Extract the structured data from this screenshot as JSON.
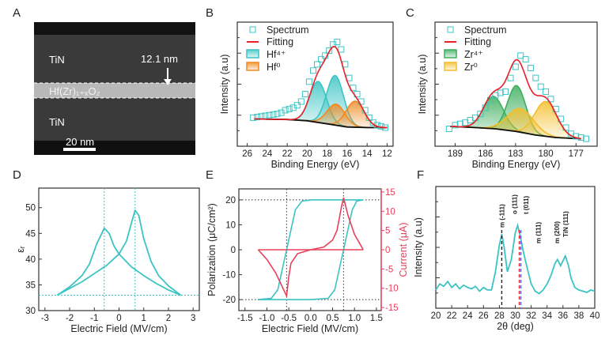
{
  "colors": {
    "teal": "#3cc4c4",
    "red": "#e8202a",
    "orange": "#f08a20",
    "green": "#3cae5c",
    "yellow": "#f4be2a",
    "current": "#e8405a",
    "blue": "#4a5cf0",
    "black": "#222222"
  },
  "panel_labels": [
    "A",
    "B",
    "C",
    "D",
    "E",
    "F"
  ],
  "tem": {
    "top_layer": "TiN",
    "bottom_layer": "TiN",
    "middle_layer": "Hf(Zr)₁₊ₓO₂",
    "thickness": "12.1 nm",
    "scale_bar": "20 nm"
  },
  "chart_data": [
    {
      "panel": "B",
      "type": "line",
      "xlabel": "Binding Energy (eV)",
      "ylabel": "Intensity (a.u)",
      "xlim": [
        27,
        11.4
      ],
      "ylim": [
        0,
        1
      ],
      "x_reversed": true,
      "xticks": [
        26,
        24,
        22,
        20,
        18,
        16,
        14,
        12
      ],
      "grid": false,
      "legend": "top-left",
      "legend_entries": [
        "Spectrum",
        "Fitting",
        "Hf⁴⁺",
        "Hf⁰"
      ],
      "background": [
        [
          25.3,
          0.22
        ],
        [
          22,
          0.215
        ],
        [
          20,
          0.205
        ],
        [
          18,
          0.18
        ],
        [
          16,
          0.155
        ],
        [
          14,
          0.15
        ],
        [
          12,
          0.15
        ]
      ],
      "components": [
        {
          "name": "Hf⁴⁺",
          "center": 18.9,
          "amplitude": 0.33,
          "sigma": 0.85
        },
        {
          "name": "Hf⁴⁺",
          "center": 17.2,
          "amplitude": 0.4,
          "sigma": 0.85
        },
        {
          "name": "Hf⁰",
          "center": 17.1,
          "amplitude": 0.17,
          "sigma": 0.9
        },
        {
          "name": "Hf⁰",
          "center": 15.2,
          "amplitude": 0.21,
          "sigma": 0.9
        }
      ],
      "spectrum": [
        [
          25.4,
          0.23
        ],
        [
          25,
          0.235
        ],
        [
          24.6,
          0.24
        ],
        [
          24.2,
          0.245
        ],
        [
          23.8,
          0.25
        ],
        [
          23.4,
          0.255
        ],
        [
          23,
          0.26
        ],
        [
          22.6,
          0.27
        ],
        [
          22.2,
          0.29
        ],
        [
          21.8,
          0.3
        ],
        [
          21.4,
          0.31
        ],
        [
          21,
          0.33
        ],
        [
          20.6,
          0.36
        ],
        [
          20.2,
          0.42
        ],
        [
          19.8,
          0.52
        ],
        [
          19.4,
          0.61
        ],
        [
          19,
          0.66
        ],
        [
          18.6,
          0.7
        ],
        [
          18.2,
          0.73
        ],
        [
          17.8,
          0.77
        ],
        [
          17.4,
          0.82
        ],
        [
          17,
          0.84
        ],
        [
          16.6,
          0.78
        ],
        [
          16.2,
          0.66
        ],
        [
          15.8,
          0.55
        ],
        [
          15.4,
          0.47
        ],
        [
          15,
          0.42
        ],
        [
          14.6,
          0.36
        ],
        [
          14.2,
          0.29
        ],
        [
          13.8,
          0.23
        ],
        [
          13.4,
          0.19
        ],
        [
          13,
          0.17
        ],
        [
          12.6,
          0.16
        ],
        [
          12.2,
          0.15
        ]
      ]
    },
    {
      "panel": "C",
      "type": "line",
      "xlabel": "Binding Energy (eV)",
      "ylabel": "Intensity (a.u)",
      "xlim": [
        191,
        174.9
      ],
      "ylim": [
        0,
        1
      ],
      "x_reversed": true,
      "xticks": [
        189,
        186,
        183,
        180,
        177
      ],
      "grid": false,
      "legend": "top-left",
      "legend_entries": [
        "Spectrum",
        "Fitting",
        "Zr⁴⁺",
        "Zr⁰"
      ],
      "background": [
        [
          189.5,
          0.16
        ],
        [
          187,
          0.15
        ],
        [
          185,
          0.14
        ],
        [
          183,
          0.12
        ],
        [
          181,
          0.09
        ],
        [
          179,
          0.07
        ],
        [
          176.5,
          0.06
        ]
      ],
      "components": [
        {
          "name": "Zr⁴⁺",
          "center": 185.2,
          "amplitude": 0.26,
          "sigma": 1.0
        },
        {
          "name": "Zr⁴⁺",
          "center": 182.9,
          "amplitude": 0.37,
          "sigma": 0.9
        },
        {
          "name": "Zr⁰",
          "center": 182.5,
          "amplitude": 0.19,
          "sigma": 1.3
        },
        {
          "name": "Zr⁰",
          "center": 180.0,
          "amplitude": 0.28,
          "sigma": 1.1
        }
      ],
      "spectrum": [
        [
          189.6,
          0.14
        ],
        [
          189,
          0.17
        ],
        [
          188.5,
          0.18
        ],
        [
          188,
          0.19
        ],
        [
          187.5,
          0.21
        ],
        [
          187,
          0.23
        ],
        [
          186.5,
          0.26
        ],
        [
          186,
          0.31
        ],
        [
          185.5,
          0.37
        ],
        [
          185,
          0.41
        ],
        [
          184.5,
          0.43
        ],
        [
          184,
          0.44
        ],
        [
          183.5,
          0.55
        ],
        [
          183,
          0.64
        ],
        [
          182.5,
          0.73
        ],
        [
          182,
          0.7
        ],
        [
          181.5,
          0.63
        ],
        [
          181,
          0.55
        ],
        [
          180.5,
          0.48
        ],
        [
          180,
          0.44
        ],
        [
          179.5,
          0.38
        ],
        [
          179,
          0.3
        ],
        [
          178.5,
          0.22
        ],
        [
          178,
          0.15
        ],
        [
          177.5,
          0.1
        ],
        [
          177,
          0.08
        ],
        [
          176.5,
          0.07
        ],
        [
          176,
          0.06
        ]
      ]
    },
    {
      "panel": "D",
      "type": "line",
      "xlabel": "Electric Field (MV/cm)",
      "ylabel": "εᵣ",
      "xlim": [
        -3.25,
        3.25
      ],
      "ylim": [
        30,
        53.8
      ],
      "xticks": [
        -3,
        -2,
        -1,
        0,
        1,
        2,
        3
      ],
      "yticks": [
        30,
        35,
        40,
        45,
        50
      ],
      "grid": false,
      "reference_lines": {
        "x": [
          -0.6,
          0.65
        ],
        "y": [
          33
        ]
      },
      "series": [
        {
          "values": [
            [
              -2.5,
              33
            ],
            [
              -2,
              34.3
            ],
            [
              -1.5,
              35.6
            ],
            [
              -1,
              37.2
            ],
            [
              -0.5,
              38.8
            ],
            [
              0,
              41
            ],
            [
              0.3,
              43.5
            ],
            [
              0.5,
              47
            ],
            [
              0.65,
              49.5
            ],
            [
              0.8,
              48.5
            ],
            [
              1,
              44
            ],
            [
              1.3,
              39.5
            ],
            [
              1.6,
              36.8
            ],
            [
              2,
              34.8
            ],
            [
              2.5,
              33
            ]
          ]
        },
        {
          "values": [
            [
              2.5,
              33
            ],
            [
              2,
              34
            ],
            [
              1.5,
              35.3
            ],
            [
              1,
              36.8
            ],
            [
              0.5,
              38.5
            ],
            [
              0,
              41
            ],
            [
              -0.2,
              42.5
            ],
            [
              -0.4,
              45
            ],
            [
              -0.6,
              46
            ],
            [
              -0.9,
              43
            ],
            [
              -1.2,
              39
            ],
            [
              -1.5,
              36.8
            ],
            [
              -2,
              34.6
            ],
            [
              -2.5,
              33
            ]
          ]
        }
      ]
    },
    {
      "panel": "E",
      "type": "line",
      "xlabel": "Electric Field (MV/cm)",
      "ylabel": "Polarization (μC/cm²)",
      "y2label": "Current (μA)",
      "xlim": [
        -1.64,
        1.61
      ],
      "ylim": [
        -24.4,
        24.4
      ],
      "y2lim": [
        -15.8,
        15.8
      ],
      "xticks": [
        "-1.5",
        "-1.0",
        "-0.5",
        "0.0",
        "0.5",
        "1.0",
        "1.5"
      ],
      "yticks": [
        20,
        10,
        0,
        -10,
        -20
      ],
      "y2ticks": [
        15,
        10,
        5,
        0,
        -5,
        -10,
        -15
      ],
      "grid": false,
      "reference_lines": {
        "x": [
          -0.55,
          0.75
        ],
        "y": [
          20,
          -20
        ]
      },
      "polarization": [
        {
          "values": [
            [
              -1.2,
              -20
            ],
            [
              0,
              -20
            ],
            [
              0.4,
              -19.5
            ],
            [
              0.55,
              -16
            ],
            [
              0.65,
              -8
            ],
            [
              0.75,
              0
            ],
            [
              0.85,
              8
            ],
            [
              0.95,
              16
            ],
            [
              1.05,
              19.5
            ],
            [
              1.2,
              20
            ]
          ]
        },
        {
          "values": [
            [
              1.2,
              20
            ],
            [
              0,
              20
            ],
            [
              -0.2,
              19.5
            ],
            [
              -0.35,
              16
            ],
            [
              -0.45,
              8
            ],
            [
              -0.55,
              0
            ],
            [
              -0.65,
              -8
            ],
            [
              -0.75,
              -16
            ],
            [
              -0.9,
              -19.5
            ],
            [
              -1.2,
              -20
            ]
          ]
        }
      ],
      "current": [
        {
          "values": [
            [
              -1.2,
              0
            ],
            [
              0,
              0
            ],
            [
              0.3,
              0.7
            ],
            [
              0.5,
              2.5
            ],
            [
              0.6,
              5
            ],
            [
              0.7,
              11
            ],
            [
              0.75,
              13.5
            ],
            [
              0.85,
              9
            ],
            [
              1,
              4
            ],
            [
              1.2,
              0
            ]
          ]
        },
        {
          "values": [
            [
              1.2,
              0
            ],
            [
              0,
              0
            ],
            [
              -0.3,
              -1
            ],
            [
              -0.45,
              -3.5
            ],
            [
              -0.5,
              -7
            ],
            [
              -0.55,
              -12
            ],
            [
              -0.8,
              -6
            ],
            [
              -1,
              -2.5
            ],
            [
              -1.2,
              0
            ]
          ]
        }
      ]
    },
    {
      "panel": "F",
      "type": "line",
      "xlabel": "2θ (deg)",
      "ylabel": "Intensity (a.u)",
      "xlim": [
        20,
        40
      ],
      "ylim": [
        0,
        1
      ],
      "xticks": [
        20,
        22,
        24,
        26,
        28,
        30,
        32,
        34,
        36,
        38,
        40
      ],
      "grid": false,
      "values": [
        [
          20,
          0.15
        ],
        [
          20.5,
          0.2
        ],
        [
          21,
          0.18
        ],
        [
          21.5,
          0.22
        ],
        [
          22,
          0.17
        ],
        [
          22.5,
          0.2
        ],
        [
          23,
          0.16
        ],
        [
          23.5,
          0.19
        ],
        [
          24,
          0.17
        ],
        [
          24.5,
          0.16
        ],
        [
          25,
          0.18
        ],
        [
          25.5,
          0.14
        ],
        [
          26,
          0.17
        ],
        [
          26.5,
          0.15
        ],
        [
          27,
          0.15
        ],
        [
          27.5,
          0.3
        ],
        [
          28,
          0.52
        ],
        [
          28.3,
          0.61
        ],
        [
          28.6,
          0.5
        ],
        [
          29,
          0.3
        ],
        [
          29.5,
          0.4
        ],
        [
          30,
          0.62
        ],
        [
          30.3,
          0.68
        ],
        [
          30.6,
          0.6
        ],
        [
          31,
          0.47
        ],
        [
          31.5,
          0.33
        ],
        [
          32,
          0.2
        ],
        [
          32.5,
          0.14
        ],
        [
          33,
          0.12
        ],
        [
          33.5,
          0.15
        ],
        [
          34,
          0.2
        ],
        [
          34.5,
          0.27
        ],
        [
          35,
          0.37
        ],
        [
          35.3,
          0.4
        ],
        [
          35.7,
          0.35
        ],
        [
          36.3,
          0.43
        ],
        [
          36.7,
          0.35
        ],
        [
          37,
          0.25
        ],
        [
          37.5,
          0.17
        ],
        [
          38,
          0.15
        ],
        [
          38.5,
          0.14
        ],
        [
          39,
          0.13
        ],
        [
          39.5,
          0.15
        ],
        [
          40,
          0.14
        ]
      ],
      "reference_lines": [
        {
          "x": 28.3,
          "color": "black"
        },
        {
          "x": 30.5,
          "color": "red"
        },
        {
          "x": 30.7,
          "color": "blue"
        }
      ],
      "annotations": [
        {
          "x": 28.3,
          "text": "m (-111)"
        },
        {
          "x": 30.3,
          "text": "o (111)"
        },
        {
          "x": 30.85,
          "text": "t (011)"
        },
        {
          "x": 31.5,
          "text": "m (111)"
        },
        {
          "x": 35.2,
          "text": "m (200)"
        },
        {
          "x": 36.3,
          "text": "TiN (111)"
        }
      ]
    }
  ]
}
